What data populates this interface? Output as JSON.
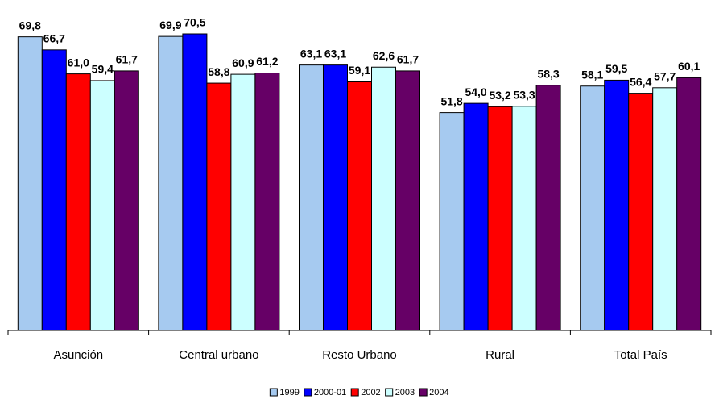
{
  "chart_data": {
    "type": "bar",
    "categories": [
      "Asunción",
      "Central urbano",
      "Resto Urbano",
      "Rural",
      "Total País"
    ],
    "series": [
      {
        "name": "1999",
        "color": "#a6caf0",
        "values": [
          69.8,
          69.9,
          63.1,
          51.8,
          58.1
        ],
        "value_labels": [
          "69,8",
          "69,9",
          "63,1",
          "51,8",
          "58,1"
        ]
      },
      {
        "name": "2000-01",
        "color": "#0000ff",
        "values": [
          66.7,
          70.5,
          63.1,
          54.0,
          59.5
        ],
        "value_labels": [
          "66,7",
          "70,5",
          "63,1",
          "54,0",
          "59,5"
        ]
      },
      {
        "name": "2002",
        "color": "#ff0000",
        "values": [
          61.0,
          58.8,
          59.1,
          53.2,
          56.4
        ],
        "value_labels": [
          "61,0",
          "58,8",
          "59,1",
          "53,2",
          "56,4"
        ]
      },
      {
        "name": "2003",
        "color": "#ccffff",
        "values": [
          59.4,
          60.9,
          62.6,
          53.3,
          57.7
        ],
        "value_labels": [
          "59,4",
          "60,9",
          "62,6",
          "53,3",
          "57,7"
        ]
      },
      {
        "name": "2004",
        "color": "#660066",
        "values": [
          61.7,
          61.2,
          61.7,
          58.3,
          60.1
        ],
        "value_labels": [
          "61,7",
          "61,2",
          "61,7",
          "58,3",
          "60,1"
        ]
      }
    ]
  }
}
